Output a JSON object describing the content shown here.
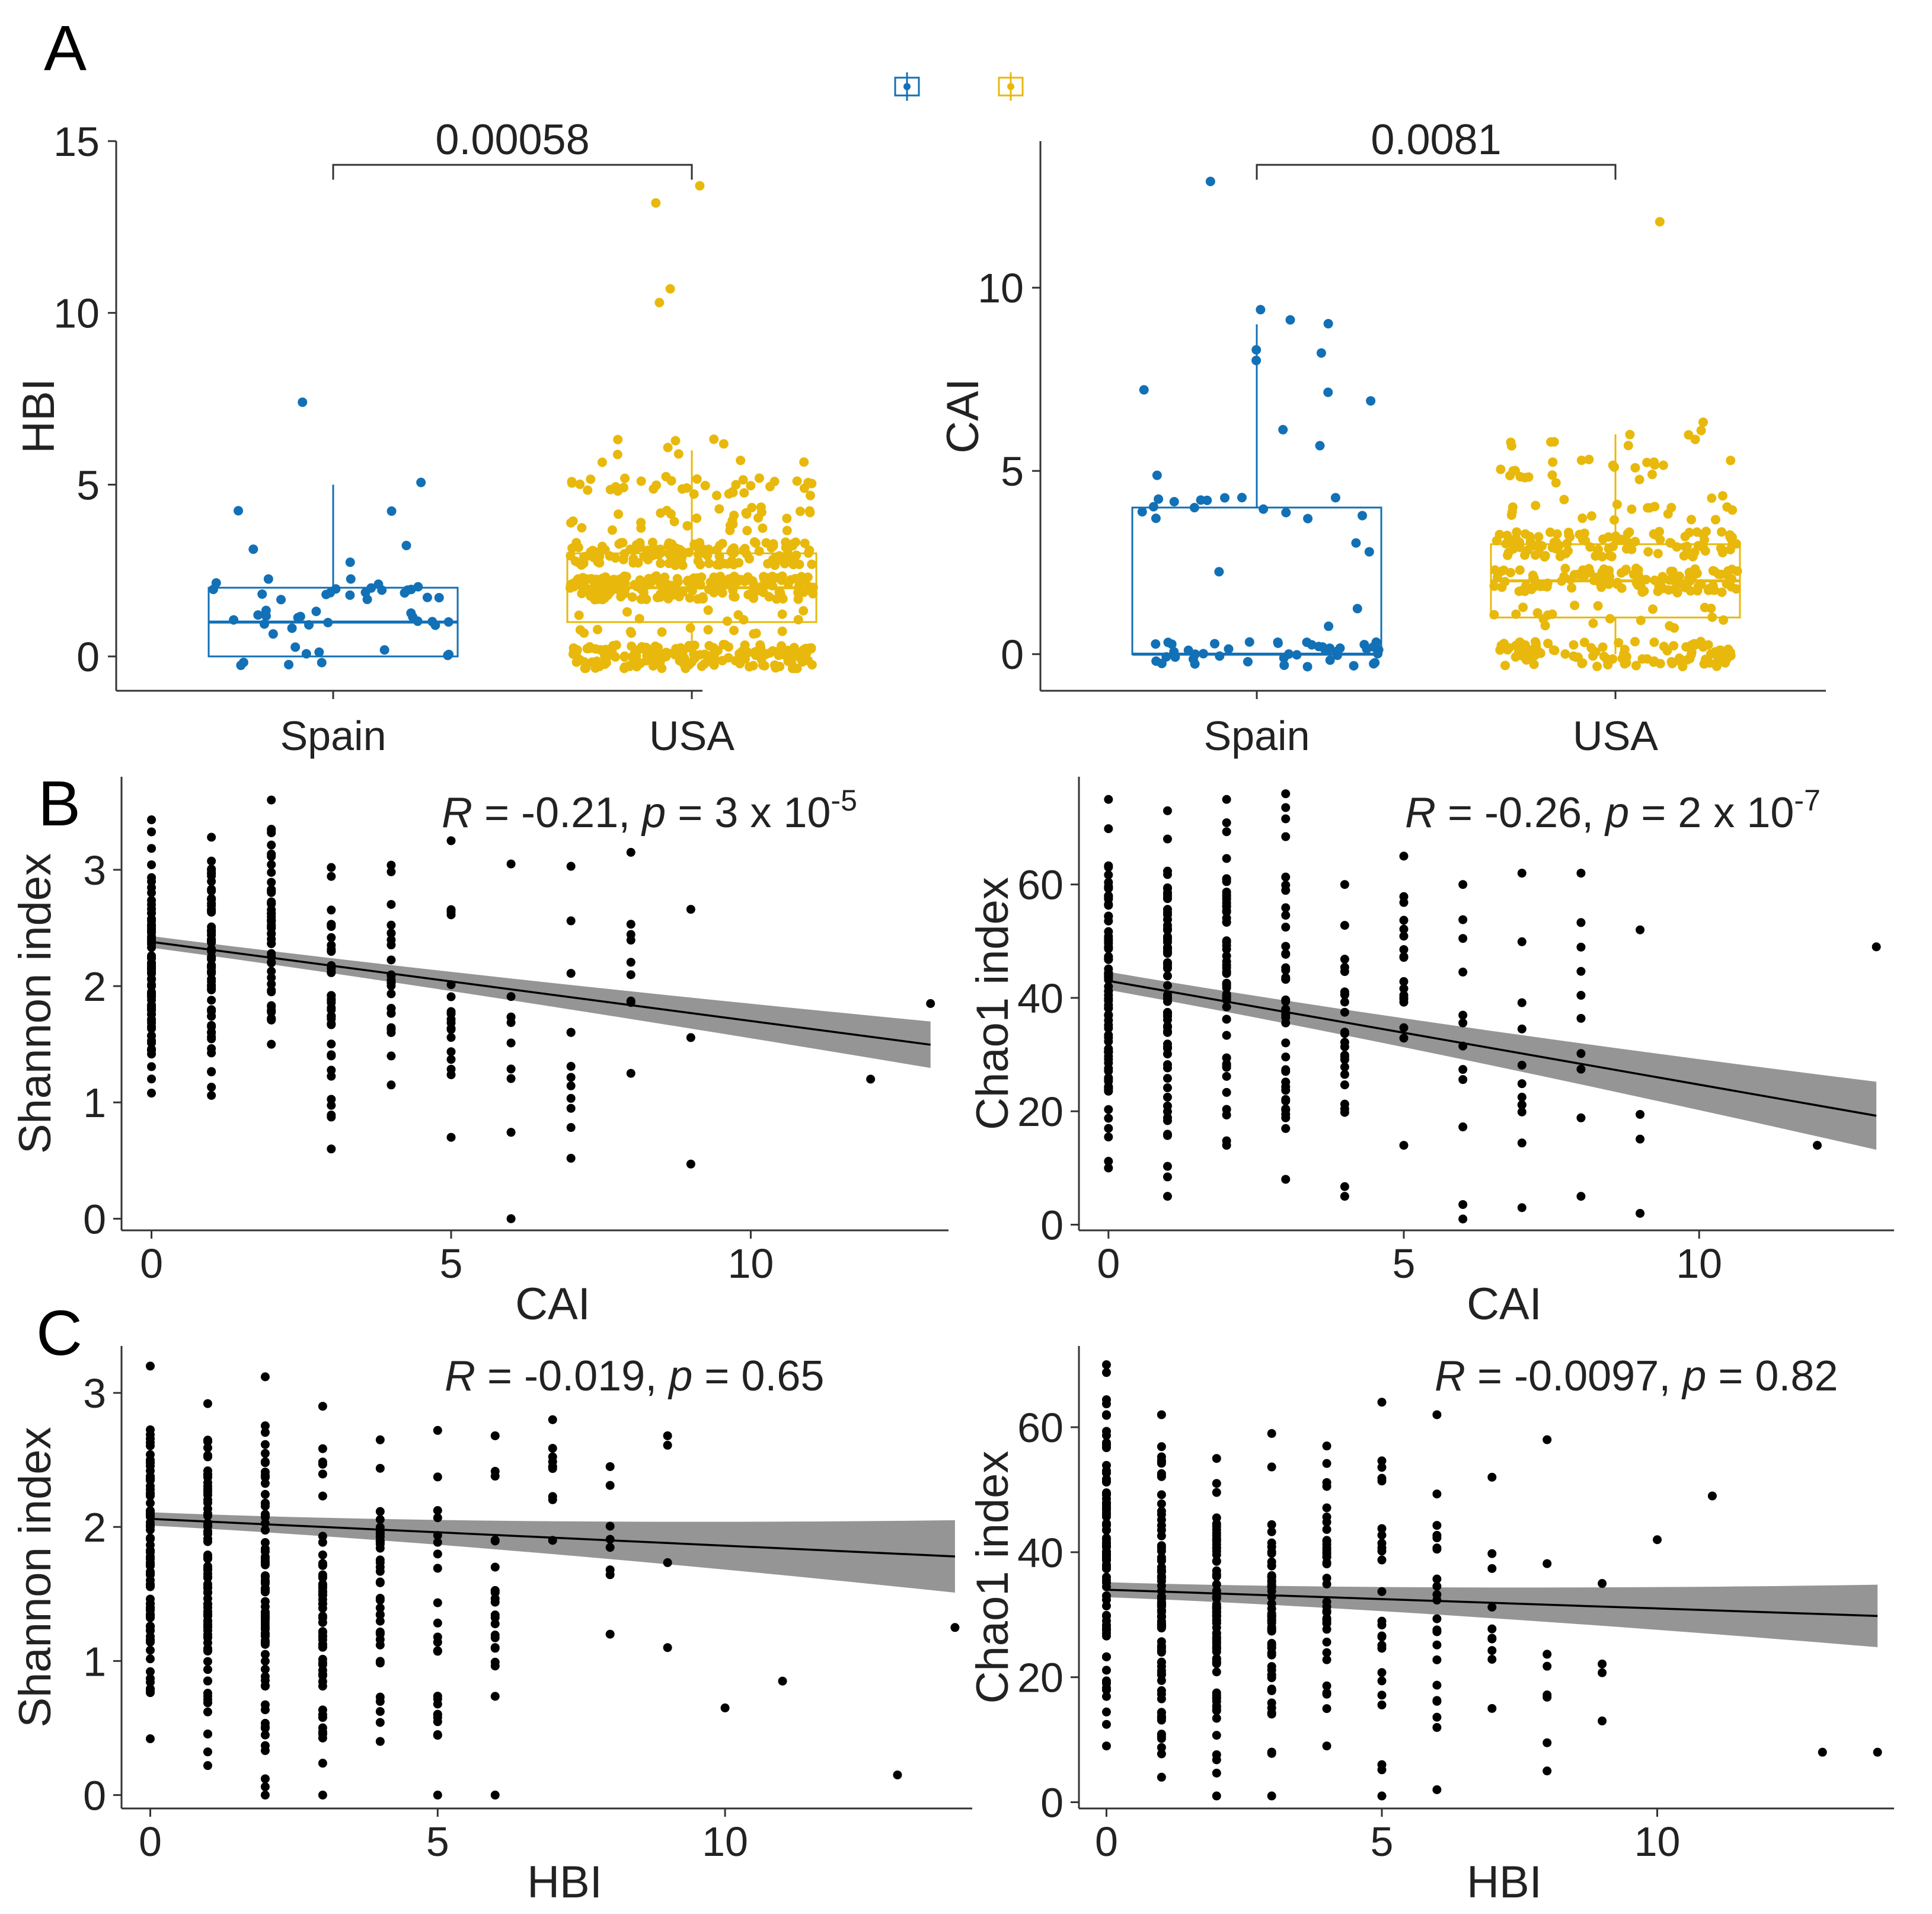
{
  "colors": {
    "spain": "#1270b6",
    "usa": "#e8b90c",
    "points": "#000000",
    "ribbon": "#8f8f8f",
    "axis": "#333333"
  },
  "chart_data": [
    {
      "id": "A1",
      "type": "boxplot",
      "panel_label": "A",
      "title": "",
      "xlabel": "",
      "ylabel": "HBI",
      "ylim": [
        -1,
        15
      ],
      "yticks": [
        0,
        5,
        10,
        15
      ],
      "categories": [
        "Spain",
        "USA"
      ],
      "groups": [
        {
          "name": "Spain",
          "min": 0,
          "q1": 0,
          "median": 1,
          "q3": 2,
          "max": 5,
          "n_points": 55,
          "outliers": [
            7.4
          ]
        },
        {
          "name": "USA",
          "min": 0,
          "q1": 1,
          "median": 2,
          "q3": 3,
          "max": 6,
          "n_points": 600,
          "outliers": [
            13.7,
            13.2,
            10.7,
            10.3
          ]
        }
      ],
      "comparison": {
        "groups": [
          "Spain",
          "USA"
        ],
        "label": "0.00058"
      }
    },
    {
      "id": "A2",
      "type": "boxplot",
      "title": "",
      "xlabel": "",
      "ylabel": "CAI",
      "ylim": [
        -1,
        14
      ],
      "yticks": [
        0,
        5,
        10
      ],
      "categories": [
        "Spain",
        "USA"
      ],
      "groups": [
        {
          "name": "Spain",
          "min": 0,
          "q1": 0,
          "median": 0,
          "q3": 4,
          "max": 9,
          "n_points": 75,
          "outliers": [
            12.9,
            9.4
          ]
        },
        {
          "name": "USA",
          "min": 0,
          "q1": 1,
          "median": 2,
          "q3": 3,
          "max": 6,
          "n_points": 400,
          "outliers": [
            11.8
          ]
        }
      ],
      "comparison": {
        "groups": [
          "Spain",
          "USA"
        ],
        "label": "0.0081"
      }
    },
    {
      "id": "B1",
      "type": "scatter",
      "panel_label": "B",
      "xlabel": "CAI",
      "ylabel": "Shannon index",
      "xlim": [
        -0.5,
        13.3
      ],
      "ylim": [
        -0.1,
        3.8
      ],
      "xticks": [
        0,
        5,
        10
      ],
      "yticks": [
        0,
        1,
        2,
        3
      ],
      "fit": {
        "intercept": 2.38,
        "slope": -0.068,
        "se0": 0.05,
        "se1": 0.2
      },
      "columns": [
        {
          "x": 0,
          "n": 80,
          "lo": 1.08,
          "hi": 3.43
        },
        {
          "x": 1,
          "n": 70,
          "lo": 1.06,
          "hi": 3.28
        },
        {
          "x": 2,
          "n": 55,
          "lo": 1.5,
          "hi": 3.6
        },
        {
          "x": 3,
          "n": 40,
          "lo": 0.6,
          "hi": 3.02
        },
        {
          "x": 4,
          "n": 25,
          "lo": 1.15,
          "hi": 3.04
        },
        {
          "x": 5,
          "n": 18,
          "lo": 0.7,
          "hi": 3.25
        },
        {
          "x": 6,
          "n": 10,
          "lo": 0.0,
          "hi": 3.05
        },
        {
          "x": 7,
          "n": 12,
          "lo": 0.52,
          "hi": 3.03
        },
        {
          "x": 8,
          "n": 9,
          "lo": 1.25,
          "hi": 3.15
        },
        {
          "x": 9,
          "n": 3,
          "lo": 0.47,
          "hi": 2.66
        }
      ],
      "extra_points": [
        [
          12,
          1.2
        ],
        [
          13,
          1.85
        ]
      ],
      "annotation": {
        "r_label": "R",
        "r_text": " = -0.21, ",
        "p_label": "p",
        "p_text": " = 3 x 10",
        "p_exp": "-5"
      }
    },
    {
      "id": "B2",
      "type": "scatter",
      "xlabel": "CAI",
      "ylabel": "Chao1 index",
      "xlim": [
        -0.5,
        13.3
      ],
      "ylim": [
        -1,
        79
      ],
      "xticks": [
        0,
        5,
        10
      ],
      "yticks": [
        0,
        20,
        40,
        60
      ],
      "fit": {
        "intercept": 43,
        "slope": -1.83,
        "se0": 1.6,
        "se1": 6
      },
      "columns": [
        {
          "x": 0,
          "n": 80,
          "lo": 10,
          "hi": 75
        },
        {
          "x": 1,
          "n": 70,
          "lo": 5,
          "hi": 73
        },
        {
          "x": 2,
          "n": 55,
          "lo": 14,
          "hi": 75
        },
        {
          "x": 3,
          "n": 40,
          "lo": 8,
          "hi": 76
        },
        {
          "x": 4,
          "n": 25,
          "lo": 5,
          "hi": 60
        },
        {
          "x": 5,
          "n": 18,
          "lo": 14,
          "hi": 65
        },
        {
          "x": 6,
          "n": 12,
          "lo": 1,
          "hi": 60
        },
        {
          "x": 7,
          "n": 12,
          "lo": 3,
          "hi": 62
        },
        {
          "x": 8,
          "n": 10,
          "lo": 5,
          "hi": 62
        },
        {
          "x": 9,
          "n": 4,
          "lo": 2,
          "hi": 52
        }
      ],
      "extra_points": [
        [
          12,
          14
        ],
        [
          13,
          49
        ]
      ],
      "annotation": {
        "r_label": "R",
        "r_text": " = -0.26, ",
        "p_label": "p",
        "p_text": " = 2 x 10",
        "p_exp": "-7"
      }
    },
    {
      "id": "C1",
      "type": "scatter",
      "panel_label": "C",
      "xlabel": "HBI",
      "ylabel": "Shannon index",
      "xlim": [
        -0.5,
        14.3
      ],
      "ylim": [
        -0.1,
        3.35
      ],
      "xticks": [
        0,
        5,
        10
      ],
      "yticks": [
        0,
        1,
        2,
        3
      ],
      "fit": {
        "intercept": 2.06,
        "slope": -0.02,
        "se0": 0.05,
        "se1": 0.27
      },
      "columns": [
        {
          "x": 0,
          "n": 90,
          "lo": 0.42,
          "hi": 3.2
        },
        {
          "x": 1,
          "n": 85,
          "lo": 0.22,
          "hi": 2.92
        },
        {
          "x": 2,
          "n": 80,
          "lo": 0.0,
          "hi": 3.12
        },
        {
          "x": 3,
          "n": 60,
          "lo": 0.0,
          "hi": 2.9
        },
        {
          "x": 4,
          "n": 40,
          "lo": 0.4,
          "hi": 2.65
        },
        {
          "x": 5,
          "n": 25,
          "lo": 0.0,
          "hi": 2.72
        },
        {
          "x": 6,
          "n": 22,
          "lo": 0.0,
          "hi": 2.68
        },
        {
          "x": 7,
          "n": 10,
          "lo": 1.9,
          "hi": 2.8
        },
        {
          "x": 8,
          "n": 8,
          "lo": 1.2,
          "hi": 2.45
        },
        {
          "x": 9,
          "n": 4,
          "lo": 1.1,
          "hi": 2.68
        }
      ],
      "extra_points": [
        [
          10,
          0.65
        ],
        [
          11,
          0.85
        ],
        [
          13,
          0.15
        ],
        [
          14,
          1.25
        ]
      ],
      "annotation": {
        "r_label": "R",
        "r_text": " = -0.019, ",
        "p_label": "p",
        "p_text": " = 0.65",
        "p_exp": ""
      }
    },
    {
      "id": "C2",
      "type": "scatter",
      "xlabel": "HBI",
      "ylabel": "Chao1 index",
      "xlim": [
        -0.5,
        14.3
      ],
      "ylim": [
        -1,
        73
      ],
      "xticks": [
        0,
        5,
        10
      ],
      "yticks": [
        0,
        20,
        40,
        60
      ],
      "fit": {
        "intercept": 34,
        "slope": -0.3,
        "se0": 1.2,
        "se1": 5
      },
      "columns": [
        {
          "x": 0,
          "n": 90,
          "lo": 9,
          "hi": 70
        },
        {
          "x": 1,
          "n": 85,
          "lo": 4,
          "hi": 62
        },
        {
          "x": 2,
          "n": 80,
          "lo": 1,
          "hi": 55
        },
        {
          "x": 3,
          "n": 60,
          "lo": 1,
          "hi": 59
        },
        {
          "x": 4,
          "n": 40,
          "lo": 9,
          "hi": 57
        },
        {
          "x": 5,
          "n": 25,
          "lo": 1,
          "hi": 64
        },
        {
          "x": 6,
          "n": 22,
          "lo": 2,
          "hi": 62
        },
        {
          "x": 7,
          "n": 10,
          "lo": 15,
          "hi": 52
        },
        {
          "x": 8,
          "n": 8,
          "lo": 5,
          "hi": 58
        },
        {
          "x": 9,
          "n": 4,
          "lo": 13,
          "hi": 35
        }
      ],
      "extra_points": [
        [
          10,
          42
        ],
        [
          11,
          49
        ],
        [
          13,
          8
        ],
        [
          14,
          8
        ]
      ],
      "annotation": {
        "r_label": "R",
        "r_text": " = -0.0097, ",
        "p_label": "p",
        "p_text": " = 0.82",
        "p_exp": ""
      }
    }
  ]
}
